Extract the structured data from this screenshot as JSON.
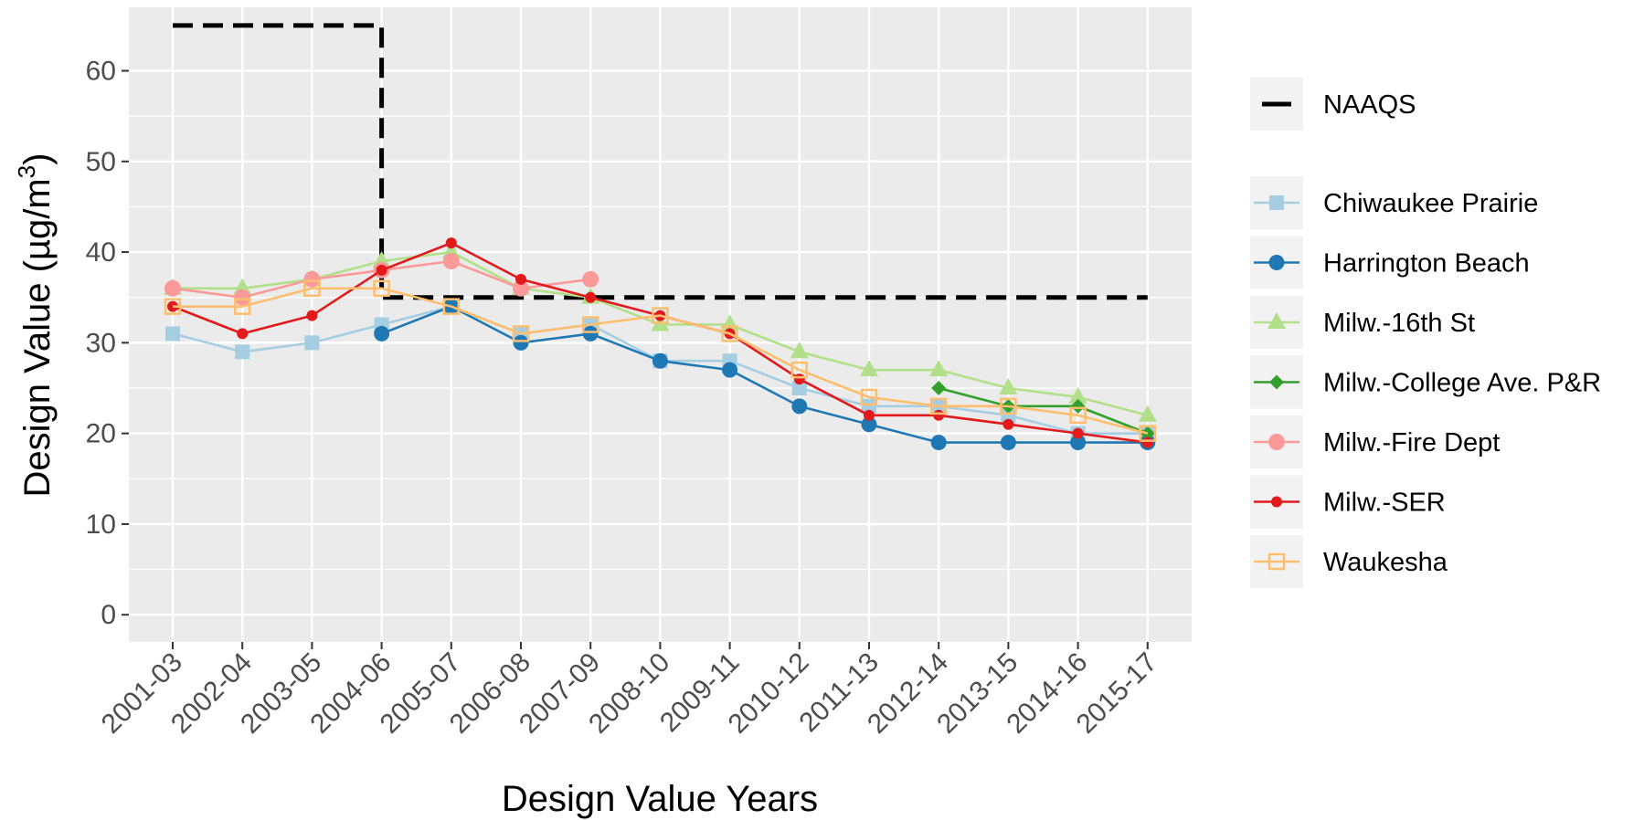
{
  "chart_data": {
    "type": "line",
    "xlabel": "Design Value Years",
    "ylabel": "Design Value (µg/m³)",
    "ylabel_parts": {
      "main": "Design Value (µg/m",
      "sup": "3",
      "close": ")"
    },
    "ylim": [
      -3,
      67
    ],
    "yticks": [
      0,
      10,
      20,
      30,
      40,
      50,
      60
    ],
    "categories": [
      "2001-03",
      "2002-04",
      "2003-05",
      "2004-06",
      "2005-07",
      "2006-08",
      "2007-09",
      "2008-10",
      "2009-11",
      "2010-12",
      "2011-13",
      "2012-14",
      "2013-15",
      "2014-16",
      "2015-17"
    ],
    "grid": true,
    "legend_position": "right",
    "naaqs": {
      "name": "NAAQS",
      "color": "#000000",
      "steps": [
        {
          "from": 0,
          "to": 3,
          "value": 65
        },
        {
          "from": 3,
          "to": 14,
          "value": 35
        }
      ]
    },
    "series": [
      {
        "name": "Chiwaukee Prairie",
        "color": "#a6cee3",
        "marker": "square-filled",
        "values": [
          31,
          29,
          30,
          32,
          34,
          31,
          32,
          28,
          28,
          25,
          23,
          23,
          22,
          20,
          20
        ]
      },
      {
        "name": "Harrington Beach",
        "color": "#1f78b4",
        "marker": "circle-filled",
        "values": [
          null,
          null,
          null,
          31,
          34,
          30,
          31,
          28,
          27,
          23,
          21,
          19,
          19,
          19,
          19
        ]
      },
      {
        "name": "Milw.-16th St",
        "color": "#b2df8a",
        "marker": "triangle-filled",
        "values": [
          36,
          36,
          37,
          39,
          40,
          36,
          35,
          32,
          32,
          29,
          27,
          27,
          25,
          24,
          22
        ]
      },
      {
        "name": "Milw.-College Ave. P&R",
        "color": "#33a02c",
        "marker": "diamond-filled",
        "values": [
          null,
          null,
          null,
          null,
          null,
          null,
          null,
          null,
          null,
          null,
          null,
          25,
          23,
          23,
          20
        ]
      },
      {
        "name": "Milw.-Fire Dept",
        "color": "#fb9a99",
        "marker": "circle-large",
        "values": [
          36,
          35,
          37,
          38,
          39,
          36,
          37,
          null,
          null,
          null,
          null,
          null,
          null,
          null,
          null
        ]
      },
      {
        "name": "Milw.-SER",
        "color": "#e31a1c",
        "marker": "circle-small",
        "values": [
          34,
          31,
          33,
          38,
          41,
          37,
          35,
          33,
          31,
          26,
          22,
          22,
          21,
          20,
          19
        ]
      },
      {
        "name": "Waukesha",
        "color": "#fdbf6f",
        "marker": "square-open",
        "values": [
          34,
          34,
          36,
          36,
          34,
          31,
          32,
          33,
          31,
          27,
          24,
          23,
          23,
          22,
          20
        ]
      }
    ]
  }
}
